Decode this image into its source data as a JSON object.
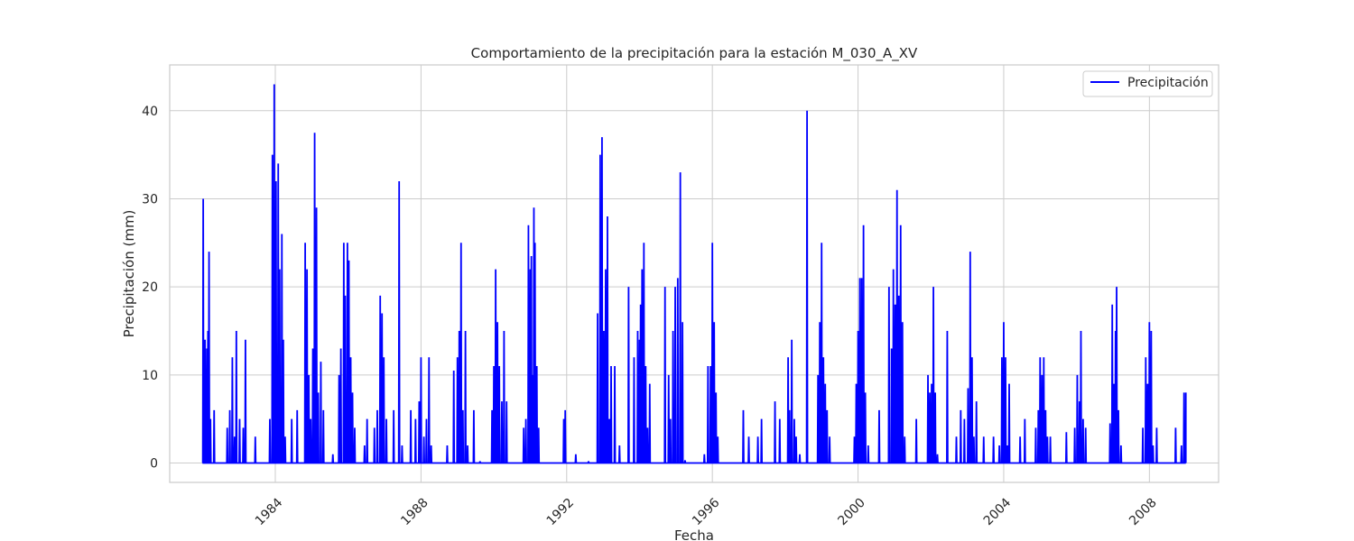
{
  "chart_data": {
    "type": "line",
    "title": "Comportamiento de la precipitación para la estación M_030_A_XV",
    "xlabel": "Fecha",
    "ylabel": "Precipitación (mm)",
    "xlim": [
      1981.1,
      2009.9
    ],
    "ylim": [
      -2.2,
      45.2
    ],
    "x_ticks": [
      1984,
      1988,
      1992,
      1996,
      2000,
      2004,
      2008
    ],
    "x_tick_labels": [
      "1984",
      "1988",
      "1992",
      "1996",
      "2000",
      "2004",
      "2008"
    ],
    "y_ticks": [
      0,
      10,
      20,
      30,
      40
    ],
    "y_tick_labels": [
      "0",
      "10",
      "20",
      "30",
      "40"
    ],
    "grid": true,
    "legend_position": "top-right",
    "colors": {
      "series": "#0000ff",
      "grid": "#cccccc",
      "frame": "#cccccc"
    },
    "series": [
      {
        "name": "Precipitación",
        "color": "#0000ff",
        "x_start": 1982.0,
        "x_end": 2009.0,
        "peaks": [
          [
            1982.02,
            30
          ],
          [
            1982.07,
            14
          ],
          [
            1982.12,
            13
          ],
          [
            1982.15,
            15
          ],
          [
            1982.18,
            24
          ],
          [
            1982.22,
            5
          ],
          [
            1982.32,
            6
          ],
          [
            1982.68,
            4
          ],
          [
            1982.75,
            6
          ],
          [
            1982.82,
            12
          ],
          [
            1982.88,
            3
          ],
          [
            1982.93,
            15
          ],
          [
            1983.02,
            5
          ],
          [
            1983.12,
            4
          ],
          [
            1983.18,
            14
          ],
          [
            1983.45,
            3
          ],
          [
            1983.85,
            5
          ],
          [
            1983.92,
            35
          ],
          [
            1983.97,
            43
          ],
          [
            1984.02,
            32
          ],
          [
            1984.08,
            34
          ],
          [
            1984.12,
            22
          ],
          [
            1984.18,
            26
          ],
          [
            1984.22,
            14
          ],
          [
            1984.27,
            3
          ],
          [
            1984.45,
            5
          ],
          [
            1984.6,
            6
          ],
          [
            1984.82,
            25
          ],
          [
            1984.87,
            22
          ],
          [
            1984.92,
            10
          ],
          [
            1984.97,
            5
          ],
          [
            1985.03,
            13
          ],
          [
            1985.08,
            37.5
          ],
          [
            1985.13,
            29
          ],
          [
            1985.18,
            8
          ],
          [
            1985.25,
            11.5
          ],
          [
            1985.32,
            6
          ],
          [
            1985.58,
            1
          ],
          [
            1985.75,
            10
          ],
          [
            1985.8,
            13
          ],
          [
            1985.88,
            25
          ],
          [
            1985.92,
            19
          ],
          [
            1985.98,
            25
          ],
          [
            1986.02,
            23
          ],
          [
            1986.07,
            12
          ],
          [
            1986.12,
            8
          ],
          [
            1986.18,
            4
          ],
          [
            1986.45,
            2
          ],
          [
            1986.52,
            5
          ],
          [
            1986.72,
            4
          ],
          [
            1986.8,
            6
          ],
          [
            1986.88,
            19
          ],
          [
            1986.93,
            17
          ],
          [
            1986.98,
            12
          ],
          [
            1987.05,
            5
          ],
          [
            1987.25,
            6
          ],
          [
            1987.4,
            32
          ],
          [
            1987.48,
            2
          ],
          [
            1987.72,
            6
          ],
          [
            1987.85,
            5
          ],
          [
            1987.95,
            7
          ],
          [
            1988.0,
            12
          ],
          [
            1988.08,
            3
          ],
          [
            1988.15,
            5
          ],
          [
            1988.22,
            12
          ],
          [
            1988.28,
            2
          ],
          [
            1988.72,
            2
          ],
          [
            1988.9,
            10.5
          ],
          [
            1989.0,
            12
          ],
          [
            1989.05,
            15
          ],
          [
            1989.1,
            25
          ],
          [
            1989.15,
            6
          ],
          [
            1989.22,
            15
          ],
          [
            1989.28,
            2
          ],
          [
            1989.45,
            6
          ],
          [
            1989.62,
            0.2
          ],
          [
            1989.95,
            6
          ],
          [
            1990.0,
            11
          ],
          [
            1990.05,
            22
          ],
          [
            1990.1,
            16
          ],
          [
            1990.15,
            11
          ],
          [
            1990.22,
            7
          ],
          [
            1990.28,
            15
          ],
          [
            1990.35,
            7
          ],
          [
            1990.82,
            4
          ],
          [
            1990.88,
            5
          ],
          [
            1990.95,
            27
          ],
          [
            1991.0,
            22
          ],
          [
            1991.03,
            23.5
          ],
          [
            1991.07,
            10
          ],
          [
            1991.1,
            29
          ],
          [
            1991.13,
            25
          ],
          [
            1991.18,
            11
          ],
          [
            1991.23,
            4
          ],
          [
            1991.92,
            5
          ],
          [
            1991.96,
            6
          ],
          [
            1992.25,
            1
          ],
          [
            1992.6,
            0.2
          ],
          [
            1992.85,
            17
          ],
          [
            1992.92,
            35
          ],
          [
            1992.97,
            37
          ],
          [
            1993.02,
            15
          ],
          [
            1993.07,
            22
          ],
          [
            1993.12,
            28
          ],
          [
            1993.17,
            5
          ],
          [
            1993.22,
            11
          ],
          [
            1993.32,
            11
          ],
          [
            1993.45,
            2
          ],
          [
            1993.7,
            20
          ],
          [
            1993.85,
            12
          ],
          [
            1993.95,
            15
          ],
          [
            1994.0,
            14
          ],
          [
            1994.03,
            18
          ],
          [
            1994.07,
            22
          ],
          [
            1994.12,
            25
          ],
          [
            1994.17,
            11
          ],
          [
            1994.22,
            4
          ],
          [
            1994.28,
            9
          ],
          [
            1994.7,
            20
          ],
          [
            1994.8,
            10
          ],
          [
            1994.85,
            5
          ],
          [
            1994.92,
            15
          ],
          [
            1994.98,
            20
          ],
          [
            1995.05,
            21
          ],
          [
            1995.12,
            33
          ],
          [
            1995.18,
            16
          ],
          [
            1995.25,
            0.3
          ],
          [
            1995.78,
            1
          ],
          [
            1995.88,
            11
          ],
          [
            1995.95,
            11
          ],
          [
            1996.0,
            25
          ],
          [
            1996.05,
            16
          ],
          [
            1996.1,
            8
          ],
          [
            1996.15,
            3
          ],
          [
            1996.85,
            6
          ],
          [
            1997.0,
            3
          ],
          [
            1997.25,
            3
          ],
          [
            1997.35,
            5
          ],
          [
            1997.72,
            7
          ],
          [
            1997.85,
            5
          ],
          [
            1998.08,
            12
          ],
          [
            1998.12,
            6
          ],
          [
            1998.18,
            14
          ],
          [
            1998.25,
            5
          ],
          [
            1998.3,
            3
          ],
          [
            1998.4,
            1
          ],
          [
            1998.6,
            40
          ],
          [
            1998.9,
            10
          ],
          [
            1998.95,
            16
          ],
          [
            1999.0,
            25
          ],
          [
            1999.05,
            12
          ],
          [
            1999.1,
            9
          ],
          [
            1999.15,
            6
          ],
          [
            1999.22,
            3
          ],
          [
            1999.9,
            3
          ],
          [
            1999.95,
            9
          ],
          [
            2000.0,
            15
          ],
          [
            2000.05,
            21
          ],
          [
            2000.1,
            21
          ],
          [
            2000.15,
            27
          ],
          [
            2000.2,
            8
          ],
          [
            2000.28,
            2
          ],
          [
            2000.58,
            6
          ],
          [
            2000.85,
            20
          ],
          [
            2000.92,
            13
          ],
          [
            2000.97,
            22
          ],
          [
            2001.02,
            18
          ],
          [
            2001.07,
            31
          ],
          [
            2001.12,
            19
          ],
          [
            2001.17,
            27
          ],
          [
            2001.22,
            16
          ],
          [
            2001.28,
            3
          ],
          [
            2001.6,
            5
          ],
          [
            2001.92,
            10
          ],
          [
            2001.97,
            8
          ],
          [
            2002.02,
            9
          ],
          [
            2002.07,
            20
          ],
          [
            2002.12,
            8
          ],
          [
            2002.18,
            1
          ],
          [
            2002.45,
            15
          ],
          [
            2002.7,
            3
          ],
          [
            2002.82,
            6
          ],
          [
            2002.92,
            5
          ],
          [
            2003.02,
            8.5
          ],
          [
            2003.08,
            24
          ],
          [
            2003.13,
            12
          ],
          [
            2003.18,
            3
          ],
          [
            2003.25,
            7
          ],
          [
            2003.45,
            3
          ],
          [
            2003.72,
            3
          ],
          [
            2003.88,
            2
          ],
          [
            2003.95,
            12
          ],
          [
            2004.0,
            16
          ],
          [
            2004.05,
            12
          ],
          [
            2004.1,
            2
          ],
          [
            2004.15,
            9
          ],
          [
            2004.45,
            3
          ],
          [
            2004.58,
            5
          ],
          [
            2004.88,
            4
          ],
          [
            2004.95,
            6
          ],
          [
            2005.0,
            12
          ],
          [
            2005.05,
            10
          ],
          [
            2005.1,
            12
          ],
          [
            2005.15,
            6
          ],
          [
            2005.2,
            3
          ],
          [
            2005.28,
            3
          ],
          [
            2005.72,
            3.5
          ],
          [
            2005.95,
            4
          ],
          [
            2006.02,
            10
          ],
          [
            2006.08,
            7
          ],
          [
            2006.12,
            15
          ],
          [
            2006.18,
            5
          ],
          [
            2006.25,
            4
          ],
          [
            2006.92,
            4.5
          ],
          [
            2006.98,
            18
          ],
          [
            2007.03,
            9
          ],
          [
            2007.07,
            15
          ],
          [
            2007.1,
            20
          ],
          [
            2007.15,
            6
          ],
          [
            2007.22,
            2
          ],
          [
            2007.82,
            4
          ],
          [
            2007.9,
            12
          ],
          [
            2007.95,
            9
          ],
          [
            2008.0,
            16
          ],
          [
            2008.05,
            15
          ],
          [
            2008.1,
            2
          ],
          [
            2008.2,
            4
          ],
          [
            2008.72,
            4
          ],
          [
            2008.88,
            2
          ],
          [
            2008.95,
            8
          ]
        ]
      }
    ]
  }
}
